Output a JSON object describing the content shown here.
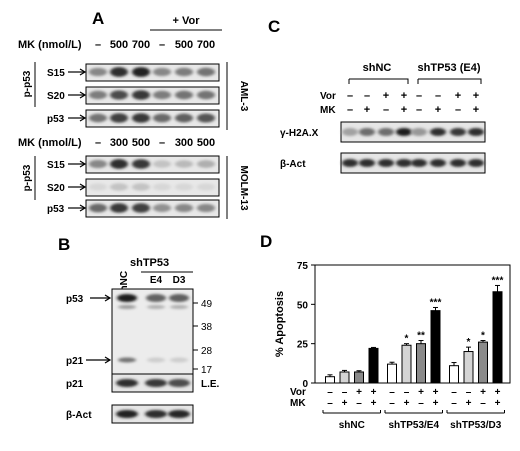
{
  "panels": {
    "A": "A",
    "B": "B",
    "C": "C",
    "D": "D"
  },
  "A": {
    "plus_vor": "+ Vor",
    "mk_label": "MK (nmol/L)",
    "top": {
      "dose_labels": [
        "–",
        "500",
        "700",
        "–",
        "500",
        "700"
      ],
      "rows": [
        "S15",
        "S20",
        "p53"
      ],
      "group_label": "p-p53",
      "cell_line": "AML-3"
    },
    "bottom": {
      "dose_labels": [
        "–",
        "300",
        "500",
        "–",
        "300",
        "500"
      ],
      "rows": [
        "S15",
        "S20",
        "p53"
      ],
      "group_label": "p-p53",
      "cell_line": "MOLM-13"
    }
  },
  "B": {
    "lanes": [
      "shNC",
      "E4",
      "D3"
    ],
    "group_label": "shTP53",
    "main_rows": [
      "p53",
      "p21"
    ],
    "markers": [
      "49",
      "38",
      "28",
      "17"
    ],
    "le_rows": [
      {
        "left": "p21",
        "right": "L.E."
      },
      {
        "left": "β-Act",
        "right": ""
      }
    ]
  },
  "C": {
    "groups": [
      "shNC",
      "shTP53 (E4)"
    ],
    "vor_label": "Vor",
    "mk_label": "MK",
    "vor": [
      "–",
      "–",
      "+",
      "+",
      "–",
      "–",
      "+",
      "+"
    ],
    "mk": [
      "–",
      "+",
      "–",
      "+",
      "–",
      "+",
      "–",
      "+"
    ],
    "rows": [
      "γ-H2A.X",
      "β-Act"
    ]
  },
  "D": {
    "chart_data": {
      "type": "bar",
      "ylabel": "% Apoptosis",
      "ylim": [
        0,
        75
      ],
      "yticks": [
        "0",
        "25",
        "50",
        "75"
      ],
      "groups": [
        "shNC",
        "shTP53/E4",
        "shTP53/D3"
      ],
      "treatments": {
        "row_labels": [
          "Vor",
          "MK"
        ],
        "vor": [
          "–",
          "–",
          "+",
          "+"
        ],
        "mk": [
          "–",
          "+",
          "–",
          "+"
        ]
      },
      "bar_colors": [
        "#ffffff",
        "#d4d4d4",
        "#8a8a8a",
        "#000000"
      ],
      "values": [
        [
          4,
          7,
          7,
          22
        ],
        [
          12,
          24,
          25,
          46
        ],
        [
          11,
          20,
          26,
          58
        ]
      ],
      "errors": [
        [
          1.2,
          1.0,
          0.8,
          0.6
        ],
        [
          1.2,
          1.0,
          2.0,
          2.0
        ],
        [
          2.0,
          2.8,
          1.0,
          4.0
        ]
      ],
      "significance": [
        [
          "",
          "",
          "",
          ""
        ],
        [
          "",
          "*",
          "**",
          "***"
        ],
        [
          "",
          "*",
          "*",
          "***"
        ]
      ]
    }
  }
}
